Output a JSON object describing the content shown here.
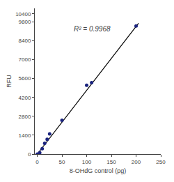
{
  "chart_data": {
    "type": "scatter",
    "xlabel": "8-OHdG control (pg)",
    "ylabel": "RFU",
    "annotations": [
      "R² = 0.9968"
    ],
    "xlim": [
      -5,
      250
    ],
    "ylim": [
      0,
      10800
    ],
    "xticks": [
      0,
      50,
      100,
      150,
      200,
      250
    ],
    "yticks": [
      0,
      1400,
      2800,
      4200,
      5600,
      7000,
      8400,
      9800,
      10400
    ],
    "grid": false,
    "series": [
      {
        "type": "line",
        "color": "#000000",
        "x": [
          0,
          205
        ],
        "values": [
          0,
          9700
        ]
      },
      {
        "type": "scatter",
        "color": "#1a237e",
        "x": [
          0,
          5,
          10,
          15,
          20,
          25,
          50,
          100,
          110,
          200
        ],
        "values": [
          0,
          100,
          400,
          800,
          1100,
          1500,
          2500,
          5100,
          5300,
          9500
        ]
      }
    ]
  }
}
